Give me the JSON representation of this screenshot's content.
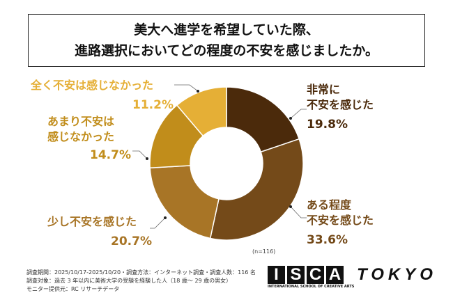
{
  "chart_data": {
    "type": "pie",
    "title": [
      "美大へ進学を希望していた際、",
      "進路選択においてどの程度の不安を感じましたか。"
    ],
    "donut": true,
    "slices": [
      {
        "label": [
          "非常に",
          "不安を感じた"
        ],
        "value": 19.8,
        "pct": "19.8%",
        "color": "#4b2a0b"
      },
      {
        "label": [
          "ある程度",
          "不安を感じた"
        ],
        "value": 33.6,
        "pct": "33.6%",
        "color": "#744a19"
      },
      {
        "label": [
          "少し不安を感じた"
        ],
        "value": 20.7,
        "pct": "20.7%",
        "color": "#a87526"
      },
      {
        "label": [
          "あまり不安は",
          "感じなかった"
        ],
        "value": 14.7,
        "pct": "14.7%",
        "color": "#c18d1b"
      },
      {
        "label": [
          "全く不安は感じなかった"
        ],
        "value": 11.2,
        "pct": "11.2%",
        "color": "#e5af36"
      }
    ],
    "n": "(n=116)"
  },
  "notes": [
    "調査期間：2025/10/17-2025/10/20・調査方法：インターネット調査・調査人数：116 名",
    "調査対象：過去 3 年以内に美術大学の受験を経験した人（18 歳～ 29 歳の男女）",
    "モニター提供元：RC リサーチデータ"
  ],
  "logo": {
    "letters": [
      "I",
      "S",
      "C",
      "A"
    ],
    "tokyo": "TOKYO",
    "sub": "INTERNATIONAL SCHOOL OF CREATIVE ARTS"
  }
}
